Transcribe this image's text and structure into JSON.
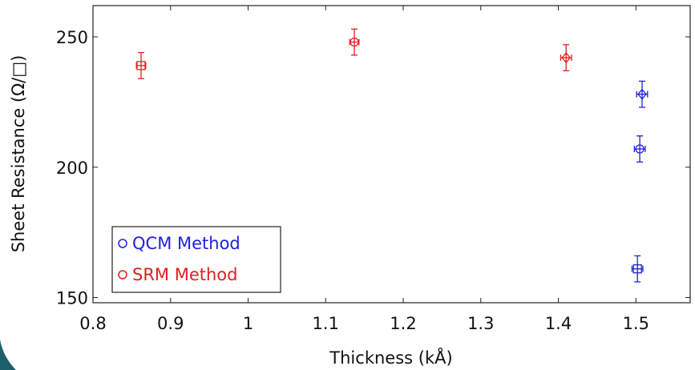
{
  "chart_data": {
    "type": "scatter",
    "title": "",
    "xlabel": "Thickness (kÅ)",
    "ylabel": "Sheet Resistance (Ω/□)",
    "xlim": [
      0.8,
      1.57
    ],
    "ylim": [
      148,
      262
    ],
    "x_ticks": [
      0.8,
      0.9,
      1,
      1.1,
      1.2,
      1.3,
      1.4,
      1.5
    ],
    "x_tick_labels": [
      "0.8",
      "0.9",
      "1",
      "1.1",
      "1.2",
      "1.3",
      "1.4",
      "1.5"
    ],
    "y_ticks": [
      150,
      200,
      250
    ],
    "y_tick_labels": [
      "150",
      "200",
      "250"
    ],
    "grid": false,
    "legend_position": "bottom-left",
    "series": [
      {
        "name": "QCM Method",
        "color": "#1f1fe0",
        "points": [
          {
            "x": 1.502,
            "y": 161,
            "marker": "square",
            "x_err": 0.007,
            "y_err": 5
          },
          {
            "x": 1.505,
            "y": 207,
            "marker": "circle",
            "x_err": 0.007,
            "y_err": 5
          },
          {
            "x": 1.508,
            "y": 228,
            "marker": "diamond",
            "x_err": 0.007,
            "y_err": 5
          }
        ]
      },
      {
        "name": "SRM Method",
        "color": "#e02020",
        "points": [
          {
            "x": 0.862,
            "y": 239,
            "marker": "square",
            "x_err": 0.006,
            "y_err": 5
          },
          {
            "x": 1.137,
            "y": 248,
            "marker": "circle",
            "x_err": 0.006,
            "y_err": 5
          },
          {
            "x": 1.41,
            "y": 242,
            "marker": "diamond",
            "x_err": 0.007,
            "y_err": 5
          }
        ]
      }
    ]
  },
  "decor": {
    "corner_color": "#1d5f6a"
  }
}
